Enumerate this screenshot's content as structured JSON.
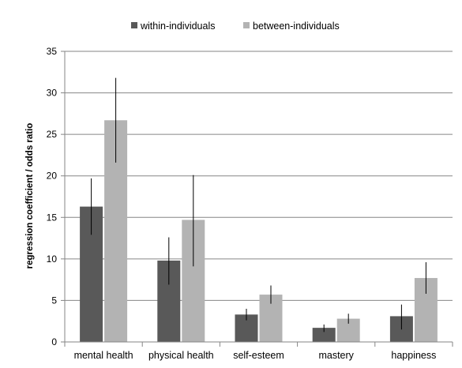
{
  "chart_data": {
    "type": "bar",
    "title": "",
    "xlabel": "",
    "ylabel": "regression coefficient / odds ratio",
    "categories": [
      "mental health",
      "physical health",
      "self-esteem",
      "mastery",
      "happiness"
    ],
    "series": [
      {
        "name": "within-individuals",
        "color": "#595959",
        "values": [
          16.3,
          9.8,
          3.3,
          1.7,
          3.1
        ],
        "err_low": [
          12.9,
          6.9,
          2.6,
          1.2,
          1.5
        ],
        "err_high": [
          19.7,
          12.6,
          4.0,
          2.1,
          4.5
        ]
      },
      {
        "name": "between-individuals",
        "color": "#b3b3b3",
        "values": [
          26.7,
          14.7,
          5.7,
          2.8,
          7.7
        ],
        "err_low": [
          21.6,
          9.1,
          4.6,
          2.2,
          5.8
        ],
        "err_high": [
          31.8,
          20.1,
          6.8,
          3.4,
          9.6
        ]
      }
    ],
    "ylim": [
      0,
      35
    ],
    "yticks": [
      0,
      5,
      10,
      15,
      20,
      25,
      30,
      35
    ],
    "grid": true,
    "legend_position": "top"
  }
}
